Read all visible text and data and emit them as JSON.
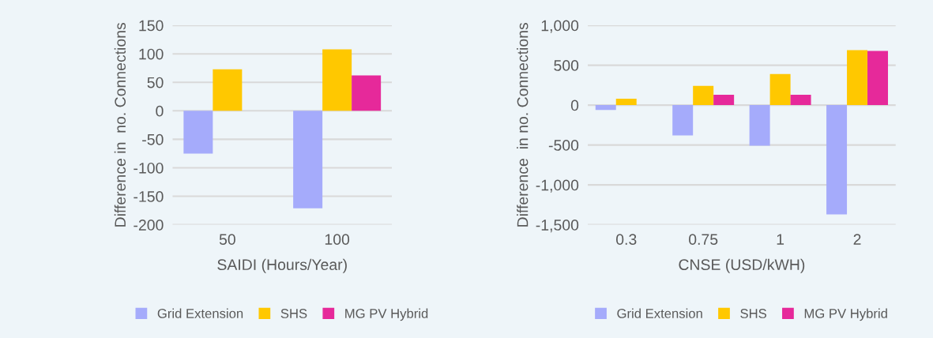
{
  "chart_data": [
    {
      "type": "bar",
      "xlabel": "SAIDI (Hours/Year)",
      "ylabel": "Difference in  no. Connections",
      "categories": [
        "50",
        "100"
      ],
      "series": [
        {
          "name": "Grid Extension",
          "color": "#a5abfb",
          "values": [
            -75,
            -171
          ]
        },
        {
          "name": "SHS",
          "color": "#ffc800",
          "values": [
            73,
            108
          ]
        },
        {
          "name": "MG PV Hybrid",
          "color": "#e6299a",
          "values": [
            null,
            62
          ]
        }
      ],
      "ylim": [
        -200,
        150
      ],
      "yticks": [
        -200,
        -150,
        -100,
        -50,
        0,
        50,
        100,
        150
      ],
      "grid": "y",
      "legend": "bottom"
    },
    {
      "type": "bar",
      "xlabel": "CNSE (USD/kWH)",
      "ylabel": "Difference  in no. Connections",
      "categories": [
        "0.3",
        "0.75",
        "1",
        "2"
      ],
      "series": [
        {
          "name": "Grid Extension",
          "color": "#a5abfb",
          "values": [
            -60,
            -380,
            -510,
            -1370
          ]
        },
        {
          "name": "SHS",
          "color": "#ffc800",
          "values": [
            80,
            240,
            390,
            690
          ]
        },
        {
          "name": "MG PV Hybrid",
          "color": "#e6299a",
          "values": [
            null,
            130,
            130,
            680
          ]
        }
      ],
      "ylim": [
        -1500,
        1000
      ],
      "yticks": [
        {
          "value": -1500,
          "label": "-1,500"
        },
        {
          "value": -1000,
          "label": "-1,000"
        },
        -500,
        0,
        500,
        {
          "value": 1000,
          "label": "1,000"
        }
      ],
      "grid": "y",
      "legend": "bottom"
    }
  ]
}
